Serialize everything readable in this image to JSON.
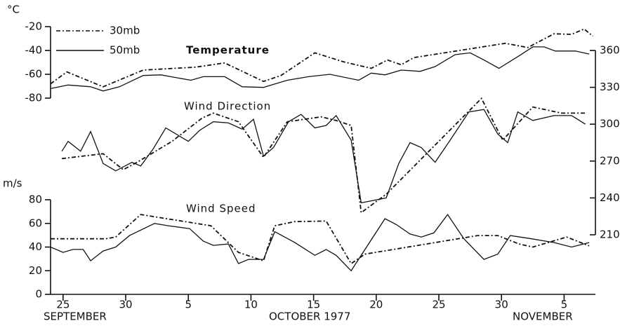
{
  "chart_data": [
    {
      "type": "line",
      "title": "Temperature",
      "ylabel": "°C",
      "ylim": [
        -80,
        -20
      ],
      "yticks": [
        -20,
        -40,
        -60,
        -80
      ],
      "series": [
        {
          "name": "30mb",
          "style": "dashed",
          "color": "#111111",
          "x": [
            24.0,
            25.3,
            28.2,
            31.4,
            35.6,
            37.9,
            41.0,
            42.4,
            45.1,
            47.4,
            49.6,
            50.9,
            52.0,
            53.0,
            60.3,
            62.1,
            64.2,
            65.6,
            66.6,
            67.3
          ],
          "values": [
            -68,
            -58,
            -70.5,
            -56.5,
            -54,
            -50.5,
            -66,
            -61,
            -42,
            -49.5,
            -55,
            -48,
            -52,
            -46,
            -34,
            -37.5,
            -26,
            -26.5,
            -22,
            -28
          ]
        },
        {
          "name": "50mb",
          "style": "solid",
          "color": "#111111",
          "x": [
            24.0,
            25.4,
            27.2,
            28.2,
            29.5,
            31.4,
            32.8,
            35.2,
            36.2,
            37.9,
            39.3,
            41.0,
            42.9,
            44.6,
            46.3,
            48.6,
            49.6,
            50.7,
            52.0,
            53.5,
            54.7,
            56.3,
            57.5,
            58.6,
            59.8,
            61.4,
            62.5,
            63.4,
            64.3,
            65.9,
            67.0
          ],
          "values": [
            -72,
            -69,
            -70.5,
            -74,
            -70.5,
            -61,
            -60.5,
            -65,
            -62,
            -62,
            -70.5,
            -71,
            -65,
            -62,
            -60,
            -65,
            -59,
            -60.5,
            -56.5,
            -57.5,
            -53.5,
            -43.5,
            -42,
            -48,
            -55,
            -44.5,
            -37,
            -37,
            -40.5,
            -40.5,
            -43
          ]
        }
      ]
    },
    {
      "type": "line",
      "title": "Wind Direction",
      "y2lim": [
        210,
        360
      ],
      "y2ticks": [
        {
          "value": 360,
          "label": "360°"
        },
        {
          "value": 330,
          "label": "330°"
        },
        {
          "value": 300,
          "label": "300°"
        },
        {
          "value": 270,
          "label": "270°"
        },
        {
          "value": 240,
          "label": "240°"
        },
        {
          "value": 210,
          "label": "210°"
        }
      ],
      "series": [
        {
          "style": "dashed",
          "color": "#111111",
          "axis": "y2",
          "x": [
            24.9,
            28.2,
            29.8,
            30.9,
            33.7,
            36.1,
            37.0,
            39.0,
            41.0,
            42.9,
            45.6,
            46.8,
            48.0,
            48.8,
            50.8,
            58.4,
            60.1,
            62.5,
            64.8,
            66.7
          ],
          "values": [
            272,
            276,
            263,
            269,
            286,
            305,
            309,
            302,
            273,
            302,
            306,
            303,
            299,
            228,
            243,
            321,
            287,
            314,
            309,
            309
          ]
        },
        {
          "style": "solid",
          "color": "#111111",
          "axis": "y2",
          "x": [
            24.9,
            25.4,
            26.4,
            27.2,
            28.2,
            29.2,
            30.5,
            31.2,
            32.2,
            33.2,
            35.0,
            35.9,
            37.0,
            38.2,
            39.3,
            40.2,
            41.0,
            41.8,
            43.0,
            44.0,
            45.1,
            46.0,
            46.8,
            48.0,
            48.8,
            50.8,
            51.8,
            52.7,
            53.6,
            54.7,
            55.9,
            57.4,
            58.6,
            59.7,
            60.5,
            61.3,
            62.5,
            64.2,
            65.6,
            66.7
          ],
          "values": [
            278,
            286,
            278,
            294,
            268,
            262,
            269,
            266,
            280,
            297,
            286,
            295,
            302,
            301,
            296,
            304,
            274,
            281,
            302,
            308,
            297,
            299,
            307,
            287,
            236,
            240,
            268,
            285,
            281,
            269,
            287,
            310,
            312,
            292,
            285,
            310,
            303,
            307,
            307,
            300
          ]
        }
      ]
    },
    {
      "type": "line",
      "title": "Wind Speed",
      "ylabel": "m/s",
      "ylim": [
        0,
        80
      ],
      "yticks": [
        0,
        20,
        40,
        60,
        80
      ],
      "xlim": [
        24,
        67.5
      ],
      "xticks": [
        25,
        30,
        {
          "value": 35,
          "label": "5"
        },
        {
          "value": 40,
          "label": "10"
        },
        {
          "value": 45,
          "label": "15"
        },
        {
          "value": 50,
          "label": "20"
        },
        {
          "value": 55,
          "label": "25"
        },
        {
          "value": 60,
          "label": "30"
        },
        {
          "value": 65,
          "label": "5"
        }
      ],
      "month_labels": [
        "SEPTEMBER",
        "OCTOBER 1977",
        "NOVEMBER"
      ],
      "series": [
        {
          "style": "dashed",
          "color": "#111111",
          "x": [
            24.0,
            28.4,
            29.2,
            31.2,
            36.8,
            39.0,
            41.0,
            41.9,
            43.5,
            46.0,
            48.0,
            49.1,
            58.1,
            59.7,
            61.4,
            62.5,
            65.2,
            67.0
          ],
          "values": [
            47,
            47,
            48.5,
            67.5,
            58,
            35.5,
            28.4,
            58,
            61.5,
            62,
            26,
            34,
            49.7,
            49.7,
            42.6,
            40,
            48.5,
            41
          ]
        },
        {
          "style": "solid",
          "color": "#111111",
          "x": [
            24.0,
            25.0,
            25.8,
            26.6,
            27.2,
            28.2,
            29.2,
            30.3,
            32.3,
            33.4,
            35.1,
            36.2,
            37.0,
            38.2,
            39.0,
            39.8,
            41.0,
            41.9,
            43.5,
            45.1,
            46.0,
            46.8,
            48.0,
            50.7,
            51.6,
            52.7,
            53.6,
            54.6,
            55.7,
            57.0,
            58.6,
            59.7,
            60.7,
            62.4,
            64.2,
            65.6,
            67.0
          ],
          "values": [
            40,
            35.5,
            38,
            38,
            28.4,
            36.7,
            40,
            49.7,
            60,
            58,
            55.6,
            45,
            41.4,
            42.6,
            26,
            29.6,
            29.6,
            53,
            43.8,
            33,
            37.9,
            33,
            20,
            64,
            59,
            51,
            48.5,
            52,
            67.5,
            47,
            29.6,
            34,
            49.7,
            47,
            43.8,
            40,
            43.8
          ]
        }
      ]
    }
  ]
}
